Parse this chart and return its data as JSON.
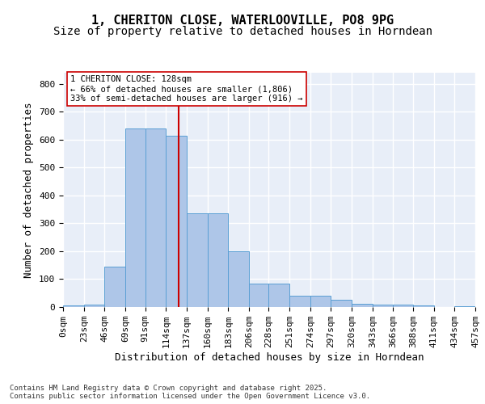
{
  "title_line1": "1, CHERITON CLOSE, WATERLOOVILLE, PO8 9PG",
  "title_line2": "Size of property relative to detached houses in Horndean",
  "xlabel": "Distribution of detached houses by size in Horndean",
  "ylabel": "Number of detached properties",
  "bar_color": "#aec6e8",
  "bar_edge_color": "#5a9fd4",
  "background_color": "#e8eef8",
  "vline_x": 128,
  "vline_color": "#cc0000",
  "annotation_text": "1 CHERITON CLOSE: 128sqm\n← 66% of detached houses are smaller (1,806)\n33% of semi-detached houses are larger (916) →",
  "annotation_box_color": "#ffffff",
  "annotation_box_edge": "#cc0000",
  "bins": [
    0,
    23,
    46,
    69,
    91,
    114,
    137,
    160,
    183,
    206,
    228,
    251,
    274,
    297,
    320,
    343,
    366,
    388,
    411,
    434,
    457
  ],
  "bar_heights": [
    5,
    10,
    145,
    640,
    640,
    615,
    335,
    335,
    200,
    85,
    85,
    40,
    40,
    25,
    12,
    10,
    10,
    7,
    0,
    3
  ],
  "ylim": [
    0,
    840
  ],
  "yticks": [
    0,
    100,
    200,
    300,
    400,
    500,
    600,
    700,
    800
  ],
  "footer_text": "Contains HM Land Registry data © Crown copyright and database right 2025.\nContains public sector information licensed under the Open Government Licence v3.0.",
  "grid_color": "#ffffff",
  "title_fontsize": 11,
  "subtitle_fontsize": 10,
  "tick_fontsize": 8,
  "label_fontsize": 9
}
